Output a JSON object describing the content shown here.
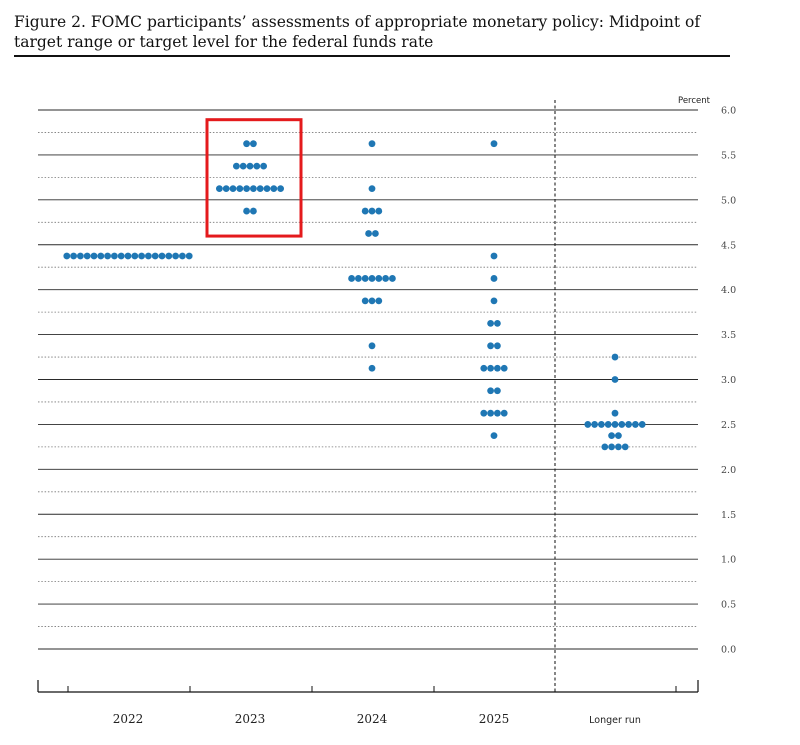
{
  "figure": {
    "title": "Figure 2.  FOMC participants’ assessments of appropriate monetary policy:  Midpoint of target range or target level for the federal funds rate"
  },
  "colors": {
    "dot": "#1f77b4",
    "highlight": "#e41a1c",
    "grid": "#333333"
  },
  "chart_data": {
    "type": "scatter",
    "title": "",
    "ylabel": "Percent",
    "xlabel": "",
    "ylim": [
      0,
      6.0
    ],
    "y_ticks": [
      "0.0",
      "0.5",
      "1.0",
      "1.5",
      "2.0",
      "2.5",
      "3.0",
      "3.5",
      "4.0",
      "4.5",
      "5.0",
      "5.5",
      "6.0"
    ],
    "categories": [
      "2022",
      "2023",
      "2024",
      "2025",
      "Longer run"
    ],
    "grid": true,
    "longer_run_separator": true,
    "highlight_category": "2023",
    "highlight_range": [
      4.875,
      5.625
    ],
    "columns": [
      {
        "category": "2022",
        "dots": [
          {
            "rate": 4.375,
            "count": 19
          }
        ]
      },
      {
        "category": "2023",
        "dots": [
          {
            "rate": 5.625,
            "count": 2
          },
          {
            "rate": 5.375,
            "count": 5
          },
          {
            "rate": 5.125,
            "count": 10
          },
          {
            "rate": 4.875,
            "count": 2
          }
        ]
      },
      {
        "category": "2024",
        "dots": [
          {
            "rate": 5.625,
            "count": 1
          },
          {
            "rate": 5.125,
            "count": 1
          },
          {
            "rate": 4.875,
            "count": 3
          },
          {
            "rate": 4.625,
            "count": 2
          },
          {
            "rate": 4.125,
            "count": 7
          },
          {
            "rate": 3.875,
            "count": 3
          },
          {
            "rate": 3.375,
            "count": 1
          },
          {
            "rate": 3.125,
            "count": 1
          }
        ]
      },
      {
        "category": "2025",
        "dots": [
          {
            "rate": 5.625,
            "count": 1
          },
          {
            "rate": 4.375,
            "count": 1
          },
          {
            "rate": 4.125,
            "count": 1
          },
          {
            "rate": 3.875,
            "count": 1
          },
          {
            "rate": 3.625,
            "count": 2
          },
          {
            "rate": 3.375,
            "count": 2
          },
          {
            "rate": 3.125,
            "count": 4
          },
          {
            "rate": 2.875,
            "count": 2
          },
          {
            "rate": 2.625,
            "count": 4
          },
          {
            "rate": 2.375,
            "count": 1
          }
        ]
      },
      {
        "category": "Longer run",
        "dots": [
          {
            "rate": 3.25,
            "count": 1
          },
          {
            "rate": 3.0,
            "count": 1
          },
          {
            "rate": 2.625,
            "count": 1
          },
          {
            "rate": 2.5,
            "count": 9
          },
          {
            "rate": 2.375,
            "count": 2
          },
          {
            "rate": 2.25,
            "count": 4
          }
        ]
      }
    ]
  }
}
